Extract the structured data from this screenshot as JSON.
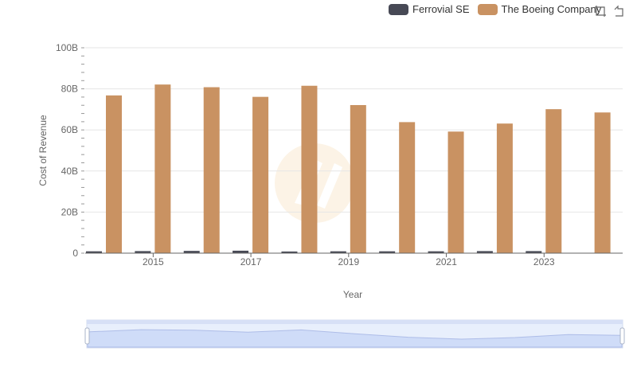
{
  "chart_data": {
    "type": "bar",
    "title": "",
    "xlabel": "Year",
    "ylabel": "Cost of Revenue",
    "categories": [
      "2014",
      "2015",
      "2016",
      "2017",
      "2018",
      "2019",
      "2020",
      "2021",
      "2022",
      "2023",
      "2024"
    ],
    "x_tick_labels": [
      "2015",
      "2017",
      "2019",
      "2021",
      "2023"
    ],
    "ylim": [
      0,
      100000000000
    ],
    "y_ticks": [
      "0",
      "20B",
      "40B",
      "60B",
      "80B",
      "100B"
    ],
    "series": [
      {
        "name": "Ferrovial SE",
        "color": "#474955",
        "values": [
          900000000.0,
          1000000000.0,
          1100000000.0,
          1200000000.0,
          800000000.0,
          900000000.0,
          900000000.0,
          900000000.0,
          1000000000.0,
          1000000000.0,
          null
        ]
      },
      {
        "name": "The Boeing Company",
        "color": "#c99262",
        "values": [
          76800000000.0,
          82100000000.0,
          80800000000.0,
          76100000000.0,
          81500000000.0,
          72100000000.0,
          63800000000.0,
          59200000000.0,
          63100000000.0,
          70100000000.0,
          68500000000.0
        ]
      }
    ],
    "legend_position": "top-right",
    "grid": true
  },
  "legend": {
    "items": [
      {
        "label": "Ferrovial SE",
        "color": "#474955"
      },
      {
        "label": "The Boeing Company",
        "color": "#c99262"
      }
    ]
  },
  "toolbox": {
    "icons": [
      "zoom-icon",
      "restore-icon"
    ]
  }
}
